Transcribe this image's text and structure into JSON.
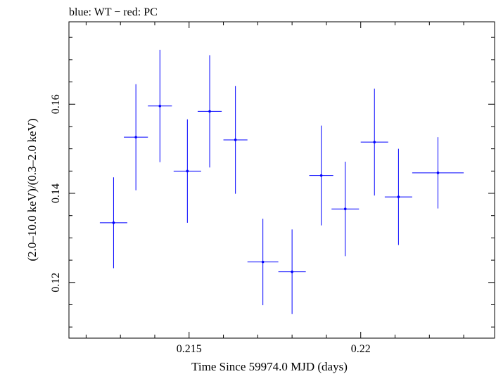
{
  "chart_data": {
    "type": "scatter",
    "title": "blue: WT − red: PC",
    "xlabel": "Time Since 59974.0 MJD (days)",
    "ylabel": "(2.0–10.0 keV)/(0.3–2.0 keV)",
    "xlim": [
      0.2115,
      0.2239
    ],
    "ylim": [
      0.1075,
      0.1785
    ],
    "x_ticks": [
      0.215,
      0.22
    ],
    "x_tick_labels": [
      "0.215",
      "0.22"
    ],
    "y_ticks": [
      0.12,
      0.14,
      0.16
    ],
    "y_tick_labels": [
      "0.12",
      "0.14",
      "0.16"
    ],
    "grid": false,
    "series": [
      {
        "color": "#0000ff",
        "points": [
          {
            "x": 0.2128,
            "xerr": 0.0004,
            "y": 0.1334,
            "yerr": 0.0102
          },
          {
            "x": 0.21345,
            "xerr": 0.00035,
            "y": 0.1526,
            "yerr": 0.0119
          },
          {
            "x": 0.21415,
            "xerr": 0.00035,
            "y": 0.1596,
            "yerr": 0.0126
          },
          {
            "x": 0.21495,
            "xerr": 0.0004,
            "y": 0.145,
            "yerr": 0.0116
          },
          {
            "x": 0.2156,
            "xerr": 0.00035,
            "y": 0.1584,
            "yerr": 0.0126
          },
          {
            "x": 0.21635,
            "xerr": 0.00035,
            "y": 0.152,
            "yerr": 0.0121
          },
          {
            "x": 0.21715,
            "xerr": 0.00045,
            "y": 0.1246,
            "yerr": 0.0097
          },
          {
            "x": 0.218,
            "xerr": 0.0004,
            "y": 0.1224,
            "yerr": 0.0095
          },
          {
            "x": 0.21885,
            "xerr": 0.00035,
            "y": 0.144,
            "yerr": 0.0112
          },
          {
            "x": 0.21955,
            "xerr": 0.0004,
            "y": 0.1365,
            "yerr": 0.0106
          },
          {
            "x": 0.2204,
            "xerr": 0.0004,
            "y": 0.1515,
            "yerr": 0.012
          },
          {
            "x": 0.2211,
            "xerr": 0.0004,
            "y": 0.1392,
            "yerr": 0.0108
          },
          {
            "x": 0.22225,
            "xerr": 0.00075,
            "y": 0.1446,
            "yerr": 0.008
          }
        ]
      }
    ]
  }
}
